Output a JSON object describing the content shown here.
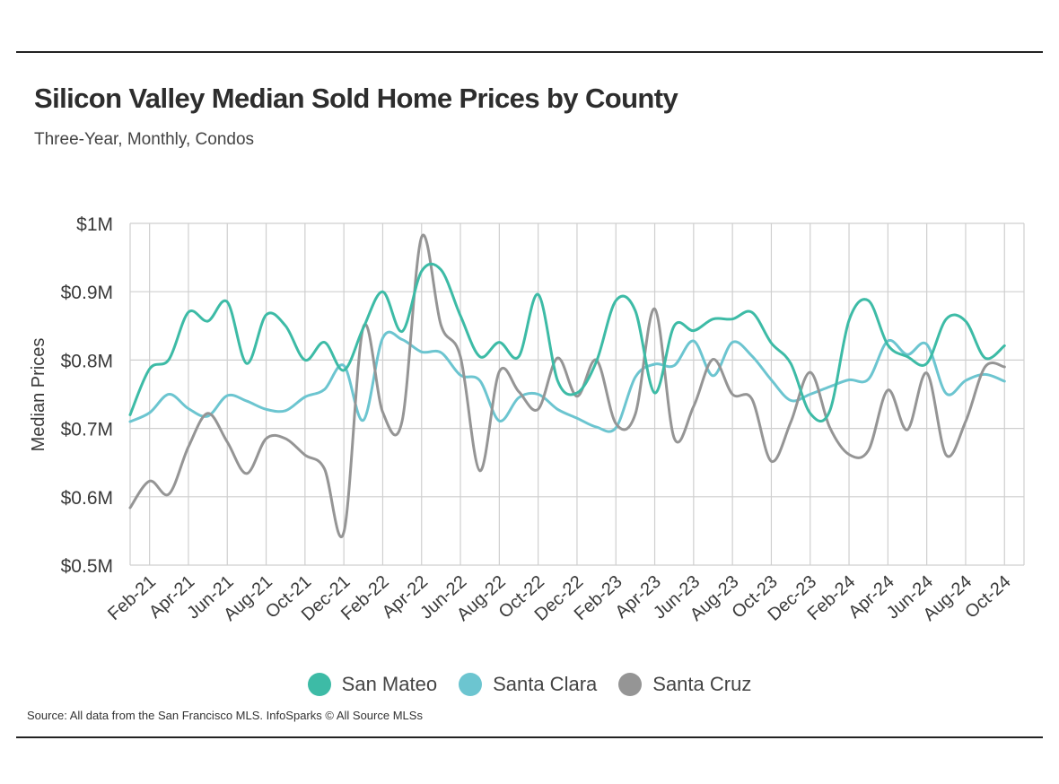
{
  "header": {
    "title": "Silicon Valley Median Sold Home Prices by County",
    "subtitle": "Three-Year, Monthly, Condos"
  },
  "footer": {
    "source": "Source:  All data from the San Francisco MLS. InfoSparks © All Source MLSs"
  },
  "chart_data": {
    "type": "line",
    "title": "Silicon Valley Median Sold Home Prices by County",
    "subtitle": "Three-Year, Monthly, Condos",
    "xlabel": "",
    "ylabel": "Median Prices",
    "ylim": [
      500000,
      1000000
    ],
    "y_ticks": [
      500000,
      600000,
      700000,
      800000,
      900000,
      1000000
    ],
    "y_tick_labels": [
      "$0.5M",
      "$0.6M",
      "$0.7M",
      "$0.8M",
      "$0.9M",
      "$1M"
    ],
    "x": [
      "Jan-21",
      "Feb-21",
      "Mar-21",
      "Apr-21",
      "May-21",
      "Jun-21",
      "Jul-21",
      "Aug-21",
      "Sep-21",
      "Oct-21",
      "Nov-21",
      "Dec-21",
      "Jan-22",
      "Feb-22",
      "Mar-22",
      "Apr-22",
      "May-22",
      "Jun-22",
      "Jul-22",
      "Aug-22",
      "Sep-22",
      "Oct-22",
      "Nov-22",
      "Dec-22",
      "Jan-23",
      "Feb-23",
      "Mar-23",
      "Apr-23",
      "May-23",
      "Jun-23",
      "Jul-23",
      "Aug-23",
      "Sep-23",
      "Oct-23",
      "Nov-23",
      "Dec-23",
      "Jan-24",
      "Feb-24",
      "Mar-24",
      "Apr-24",
      "May-24",
      "Jun-24",
      "Jul-24",
      "Aug-24",
      "Sep-24",
      "Oct-24"
    ],
    "x_tick_labels": [
      "Feb-21",
      "Apr-21",
      "Jun-21",
      "Aug-21",
      "Oct-21",
      "Dec-21",
      "Feb-22",
      "Apr-22",
      "Jun-22",
      "Aug-22",
      "Oct-22",
      "Dec-22",
      "Feb-23",
      "Apr-23",
      "Jun-23",
      "Aug-23",
      "Oct-23",
      "Dec-23",
      "Feb-24",
      "Apr-24",
      "Jun-24",
      "Aug-24",
      "Oct-24"
    ],
    "grid": true,
    "legend_position": "bottom-center",
    "series": [
      {
        "name": "San Mateo",
        "color": "#3dbba6",
        "values": [
          720000,
          787000,
          801000,
          870000,
          857000,
          885000,
          795000,
          866000,
          850000,
          800000,
          826000,
          785000,
          847000,
          900000,
          842000,
          930000,
          932000,
          865000,
          805000,
          826000,
          805000,
          896000,
          770000,
          752000,
          798000,
          887000,
          872000,
          752000,
          850000,
          843000,
          860000,
          860000,
          870000,
          825000,
          795000,
          722000,
          725000,
          858000,
          887000,
          822000,
          805000,
          795000,
          860000,
          857000,
          803000,
          821000
        ]
      },
      {
        "name": "Santa Clara",
        "color": "#6cc5d0",
        "values": [
          710000,
          723000,
          750000,
          729000,
          718000,
          748000,
          740000,
          728000,
          726000,
          746000,
          757000,
          792000,
          712000,
          832000,
          830000,
          812000,
          811000,
          778000,
          770000,
          711000,
          745000,
          750000,
          728000,
          715000,
          702000,
          701000,
          775000,
          794000,
          792000,
          828000,
          777000,
          826000,
          806000,
          771000,
          741000,
          750000,
          761000,
          771000,
          772000,
          828000,
          808000,
          823000,
          751000,
          770000,
          779000,
          769000
        ],
        "hidden_note": ""
      },
      {
        "name": "Santa Cruz",
        "color": "#959595",
        "values": [
          584000,
          623000,
          604000,
          673000,
          722000,
          680000,
          634000,
          685000,
          685000,
          661000,
          641000,
          548000,
          848000,
          724000,
          711000,
          980000,
          851000,
          805000,
          638000,
          783000,
          754000,
          728000,
          803000,
          747000,
          800000,
          707000,
          721000,
          875000,
          686000,
          732000,
          801000,
          750000,
          743000,
          652000,
          709000,
          782000,
          702000,
          662000,
          668000,
          756000,
          698000,
          781000,
          661000,
          710000,
          790000,
          790000
        ]
      }
    ]
  }
}
